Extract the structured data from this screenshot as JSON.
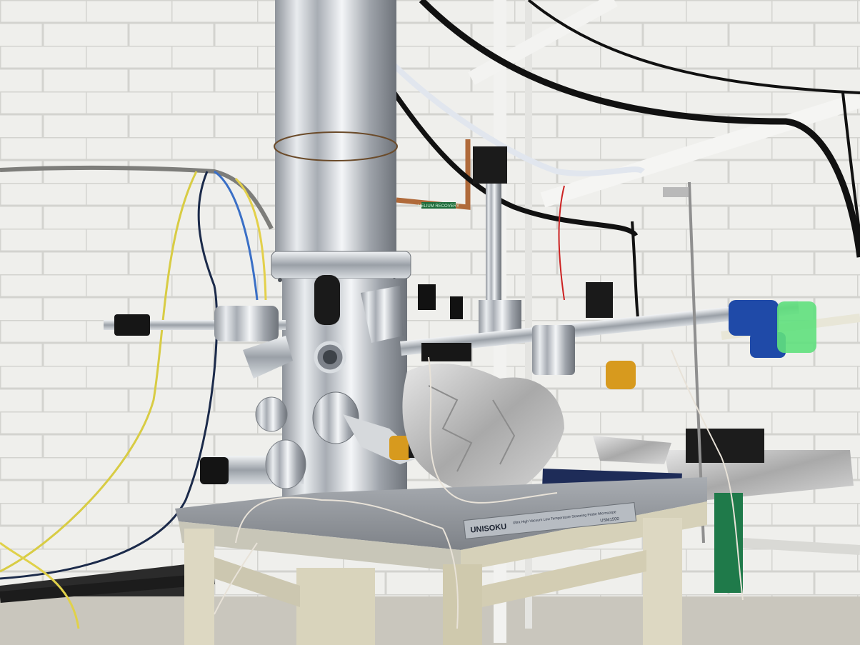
{
  "photo": {
    "labels": {
      "helium_sign": "HELIUM RECOVERY",
      "nameplate_brand": "UNISOKU",
      "nameplate_sub": "Ultra High Vacuum Low Temperature Scanning Probe Microscope",
      "nameplate_code": "USM1500"
    },
    "colors": {
      "wall": "#eeeeea",
      "mortar": "#d6d6d2",
      "steel": "#c9ccd1",
      "table_frame": "#ddd8c2",
      "foil": "#cfcfcf",
      "blue_knob": "#1f4aa8",
      "green_tape": "#5fe07d",
      "gold_ring": "#d79a1e"
    }
  }
}
